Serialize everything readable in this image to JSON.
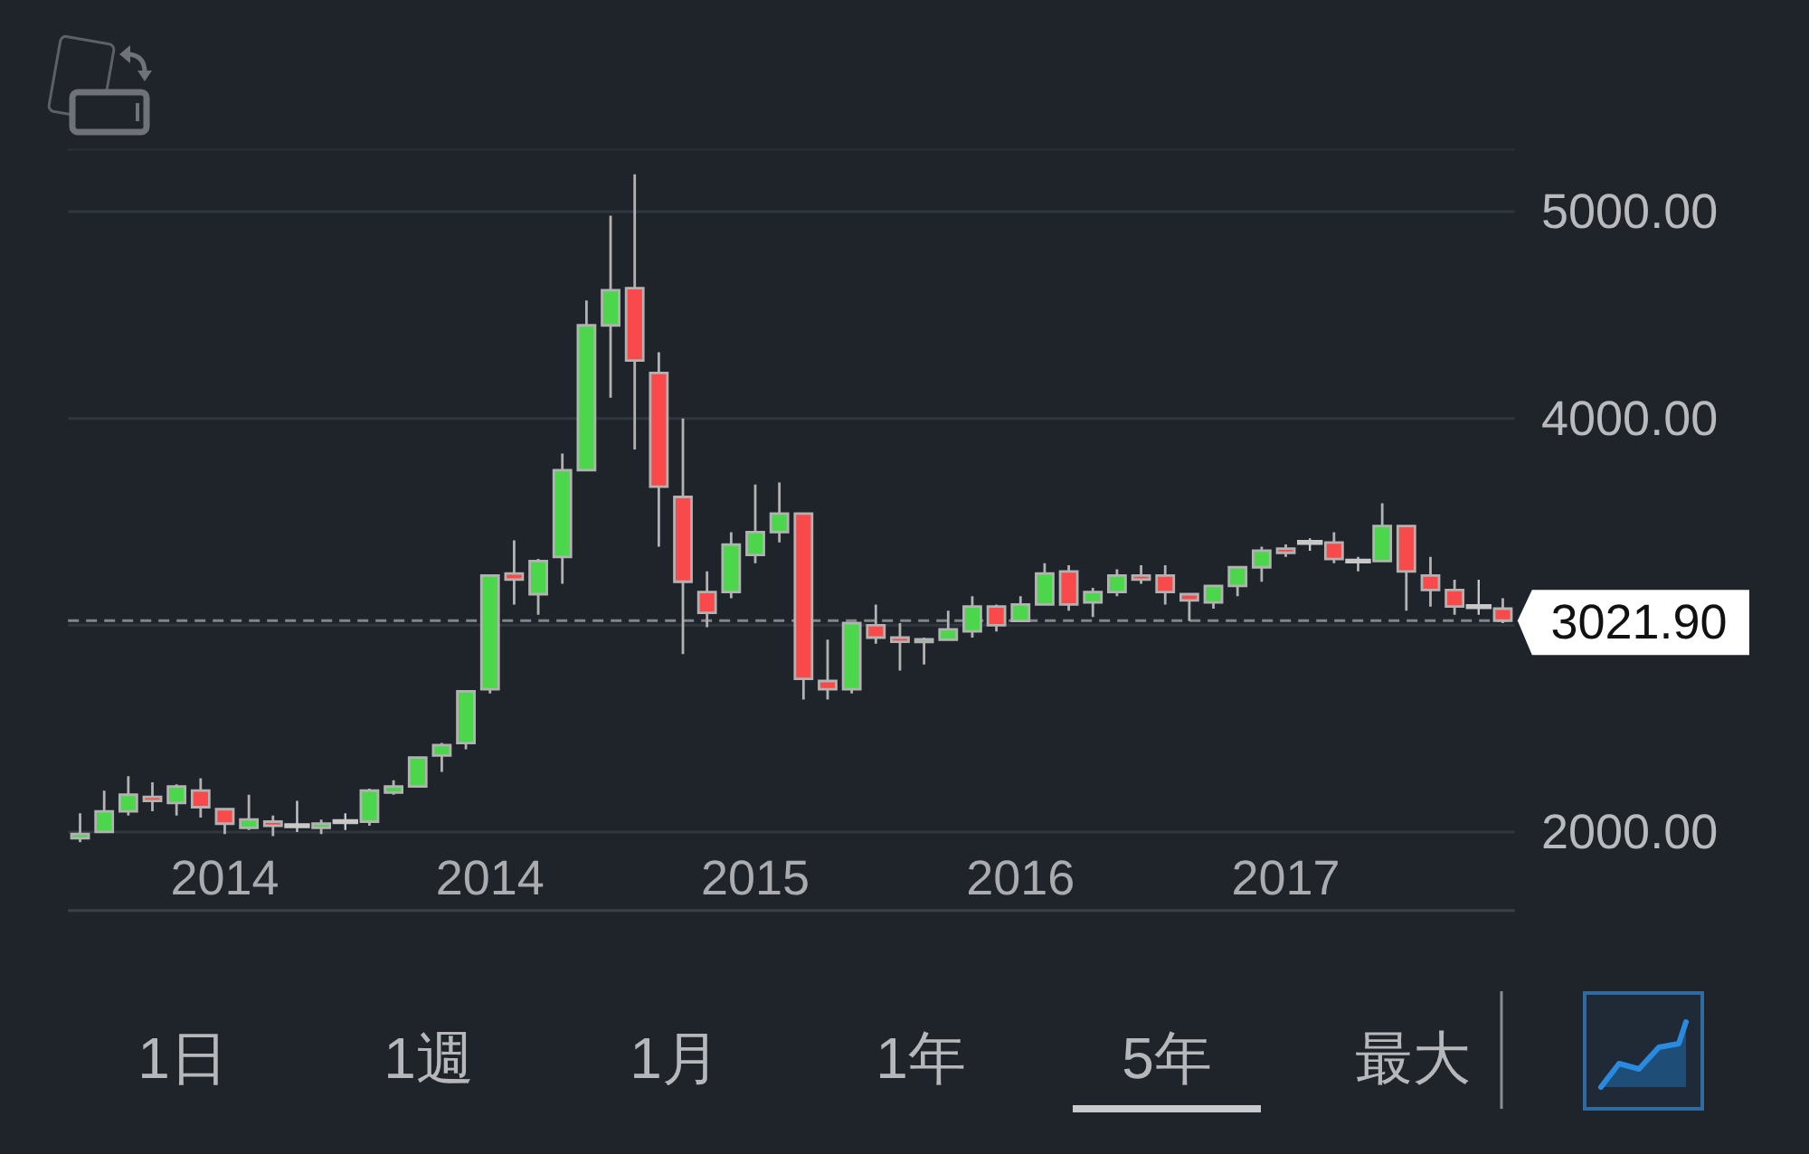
{
  "chart_data": {
    "type": "candlestick",
    "categories": [
      null,
      null,
      null,
      null,
      null,
      null,
      "2014",
      null,
      null,
      null,
      null,
      null,
      null,
      null,
      null,
      null,
      null,
      "2014",
      null,
      null,
      null,
      null,
      null,
      null,
      null,
      null,
      null,
      null,
      "2015",
      null,
      null,
      null,
      null,
      null,
      null,
      null,
      null,
      null,
      null,
      "2016",
      null,
      null,
      null,
      null,
      null,
      null,
      null,
      null,
      null,
      null,
      "2017",
      null,
      null,
      null,
      null,
      null,
      null,
      null,
      null,
      null
    ],
    "ohlc": [
      [
        1970,
        2090,
        1950,
        1990
      ],
      [
        2000,
        2200,
        2000,
        2100
      ],
      [
        2100,
        2270,
        2080,
        2180
      ],
      [
        2170,
        2240,
        2100,
        2150
      ],
      [
        2140,
        2230,
        2080,
        2220
      ],
      [
        2200,
        2260,
        2070,
        2120
      ],
      [
        2110,
        2110,
        1990,
        2040
      ],
      [
        2020,
        2180,
        2010,
        2060
      ],
      [
        2050,
        2080,
        1980,
        2030
      ],
      [
        2030,
        2150,
        2000,
        2030
      ],
      [
        2020,
        2060,
        1990,
        2040
      ],
      [
        2050,
        2090,
        2010,
        2050
      ],
      [
        2050,
        2210,
        2030,
        2200
      ],
      [
        2190,
        2250,
        2180,
        2220
      ],
      [
        2220,
        2360,
        2220,
        2360
      ],
      [
        2370,
        2430,
        2290,
        2420
      ],
      [
        2430,
        2680,
        2400,
        2680
      ],
      [
        2690,
        3240,
        2670,
        3240
      ],
      [
        3250,
        3410,
        3100,
        3220
      ],
      [
        3150,
        3320,
        3050,
        3310
      ],
      [
        3330,
        3830,
        3200,
        3750
      ],
      [
        3750,
        4570,
        3750,
        4450
      ],
      [
        4450,
        4980,
        4100,
        4620
      ],
      [
        4630,
        5180,
        3850,
        4280
      ],
      [
        4220,
        4320,
        3380,
        3670
      ],
      [
        3620,
        4000,
        2860,
        3210
      ],
      [
        3160,
        3260,
        2990,
        3060
      ],
      [
        3160,
        3450,
        3130,
        3390
      ],
      [
        3340,
        3680,
        3300,
        3450
      ],
      [
        3450,
        3690,
        3400,
        3540
      ],
      [
        3540,
        3540,
        2640,
        2740
      ],
      [
        2730,
        2930,
        2640,
        2690
      ],
      [
        2690,
        3010,
        2670,
        3010
      ],
      [
        3000,
        3100,
        2910,
        2940
      ],
      [
        2940,
        3010,
        2780,
        2920
      ],
      [
        2920,
        2940,
        2810,
        2930
      ],
      [
        2930,
        3070,
        2930,
        2980
      ],
      [
        2970,
        3140,
        2940,
        3090
      ],
      [
        3090,
        3100,
        2970,
        3000
      ],
      [
        3020,
        3140,
        3020,
        3100
      ],
      [
        3100,
        3300,
        3100,
        3250
      ],
      [
        3260,
        3290,
        3070,
        3100
      ],
      [
        3110,
        3180,
        3040,
        3160
      ],
      [
        3160,
        3270,
        3140,
        3240
      ],
      [
        3240,
        3290,
        3200,
        3220
      ],
      [
        3240,
        3290,
        3100,
        3160
      ],
      [
        3150,
        3150,
        3020,
        3120
      ],
      [
        3110,
        3190,
        3080,
        3190
      ],
      [
        3190,
        3280,
        3140,
        3280
      ],
      [
        3280,
        3380,
        3210,
        3360
      ],
      [
        3370,
        3390,
        3330,
        3350
      ],
      [
        3400,
        3420,
        3360,
        3400
      ],
      [
        3400,
        3450,
        3300,
        3320
      ],
      [
        3310,
        3330,
        3260,
        3310
      ],
      [
        3310,
        3590,
        3310,
        3480
      ],
      [
        3480,
        3480,
        3070,
        3260
      ],
      [
        3240,
        3330,
        3090,
        3170
      ],
      [
        3170,
        3220,
        3050,
        3090
      ],
      [
        3090,
        3220,
        3050,
        3090
      ],
      [
        3080,
        3130,
        3010,
        3021.9
      ]
    ],
    "colors": [
      "#4cd64c",
      "#4cd64c",
      "#4cd64c",
      "#f84a4a",
      "#4cd64c",
      "#f84a4a",
      "#f84a4a",
      "#4cd64c",
      "#f84a4a",
      "#c8c8c8",
      "#4cd64c",
      "#c8c8c8",
      "#4cd64c",
      "#4cd64c",
      "#4cd64c",
      "#4cd64c",
      "#4cd64c",
      "#4cd64c",
      "#f84a4a",
      "#4cd64c",
      "#4cd64c",
      "#4cd64c",
      "#4cd64c",
      "#f84a4a",
      "#f84a4a",
      "#f84a4a",
      "#f84a4a",
      "#4cd64c",
      "#4cd64c",
      "#4cd64c",
      "#f84a4a",
      "#f84a4a",
      "#4cd64c",
      "#f84a4a",
      "#f84a4a",
      "#4cd64c",
      "#4cd64c",
      "#4cd64c",
      "#f84a4a",
      "#4cd64c",
      "#4cd64c",
      "#f84a4a",
      "#4cd64c",
      "#4cd64c",
      "#f84a4a",
      "#f84a4a",
      "#f84a4a",
      "#4cd64c",
      "#4cd64c",
      "#4cd64c",
      "#f84a4a",
      "#c8c8c8",
      "#f84a4a",
      "#c8c8c8",
      "#4cd64c",
      "#f84a4a",
      "#f84a4a",
      "#f84a4a",
      "#c8c8c8",
      "#f84a4a"
    ],
    "ylim": [
      1620,
      5300
    ],
    "yticks": [
      {
        "value": 2000,
        "label": "2000.00"
      },
      {
        "value": 3000,
        "label": null
      },
      {
        "value": 4000,
        "label": "4000.00"
      },
      {
        "value": 5000,
        "label": "5000.00"
      }
    ],
    "grid": "y",
    "ref_lines": [
      {
        "axis": "y",
        "value": 3021.9,
        "label": "3021.90",
        "line_style": "dashed",
        "color": "#80858b"
      }
    ],
    "annotations": [
      "1日",
      "1週",
      "1月",
      "1年",
      "5年",
      "最大"
    ]
  }
}
